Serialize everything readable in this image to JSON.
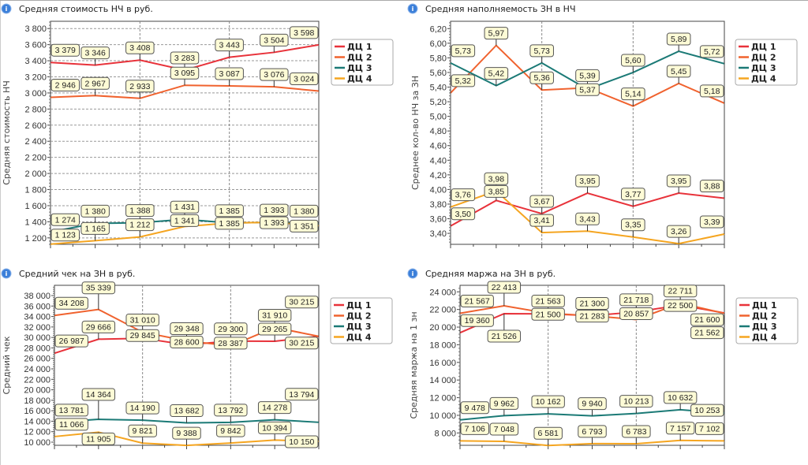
{
  "colors": {
    "ДЦ 1": "#e8323a",
    "ДЦ 2": "#f0622e",
    "ДЦ 3": "#1b7a76",
    "ДЦ 4": "#f5a520",
    "label_bg": "#fdfbd6",
    "label_border": "#555555"
  },
  "icons": {
    "title": "info-icon"
  },
  "chart_data": [
    {
      "type": "line",
      "title": "Средняя стоимость НЧ в руб.",
      "ylabel": "Средняя стоимость НЧ",
      "ylim": [
        1120,
        3890
      ],
      "grid": {
        "horizontal": true,
        "vertical_dashed_at_points": [
          3,
          5
        ]
      },
      "legend": "right",
      "ytick_values": [
        1200,
        1400,
        1600,
        1800,
        2000,
        2200,
        2400,
        2600,
        2800,
        3000,
        3200,
        3400,
        3600,
        3800
      ],
      "ytick_labels": [
        "1 200",
        "1 400",
        "1 600",
        "1 800",
        "2 000",
        "2 200",
        "2 400",
        "2 600",
        "2 800",
        "3 000",
        "3 200",
        "3 400",
        "3 600",
        "3 800"
      ],
      "series": [
        {
          "name": "ДЦ 1",
          "values": [
            3379,
            3346,
            3408,
            3283,
            3443,
            3504,
            3598
          ]
        },
        {
          "name": "ДЦ 2",
          "values": [
            2946,
            2967,
            2933,
            3095,
            3087,
            3076,
            3024
          ]
        },
        {
          "name": "ДЦ 3",
          "values": [
            1274,
            1380,
            1388,
            1431,
            1385,
            1393,
            1380
          ]
        },
        {
          "name": "ДЦ 4",
          "values": [
            1123,
            1165,
            1212,
            1341,
            1385,
            1393,
            1351
          ]
        }
      ]
    },
    {
      "type": "line",
      "title": "Средняя наполняемость ЗН в НЧ",
      "ylabel": "Среднее кол-во НЧ за ЗН",
      "ylim": [
        3.25,
        6.3
      ],
      "grid": {
        "horizontal": false,
        "vertical_dashed_at_points": [
          3,
          5
        ]
      },
      "legend": "right",
      "ytick_values": [
        3.4,
        3.6,
        3.8,
        4.0,
        4.2,
        4.4,
        4.6,
        4.8,
        5.0,
        5.2,
        5.4,
        5.6,
        5.8,
        6.0,
        6.2
      ],
      "ytick_labels": [
        "3,40",
        "3,60",
        "3,80",
        "4,00",
        "4,20",
        "4,40",
        "4,60",
        "4,80",
        "5,00",
        "5,20",
        "5,40",
        "5,60",
        "5,80",
        "6,00",
        "6,20"
      ],
      "series": [
        {
          "name": "ДЦ 1",
          "values": [
            3.5,
            3.85,
            3.67,
            3.95,
            3.77,
            3.95,
            3.88
          ]
        },
        {
          "name": "ДЦ 2",
          "values": [
            5.32,
            5.97,
            5.36,
            5.39,
            5.14,
            5.45,
            5.18
          ]
        },
        {
          "name": "ДЦ 3",
          "values": [
            5.73,
            5.42,
            5.73,
            5.37,
            5.6,
            5.89,
            5.72
          ]
        },
        {
          "name": "ДЦ 4",
          "values": [
            3.76,
            3.98,
            3.41,
            3.43,
            3.35,
            3.26,
            3.39
          ]
        }
      ]
    },
    {
      "type": "line",
      "title": "Средний чек на ЗН в руб.",
      "ylabel": "Средний чек",
      "ylim": [
        9400,
        39960
      ],
      "grid": {
        "horizontal": false,
        "vertical_dashed_at_points": [
          3,
          5
        ]
      },
      "legend": "right",
      "ytick_values": [
        10000,
        12000,
        14000,
        16000,
        18000,
        20000,
        22000,
        24000,
        26000,
        28000,
        30000,
        32000,
        34000,
        36000,
        38000
      ],
      "ytick_labels": [
        "10 000",
        "12 000",
        "14 000",
        "16 000",
        "18 000",
        "20 000",
        "22 000",
        "24 000",
        "26 000",
        "28 000",
        "30 000",
        "32 000",
        "34 000",
        "36 000",
        "38 000"
      ],
      "series": [
        {
          "name": "ДЦ 1",
          "values": [
            26987,
            29666,
            29845,
            28600,
            29300,
            29265,
            30215
          ]
        },
        {
          "name": "ДЦ 2",
          "values": [
            34208,
            35339,
            31010,
            29348,
            28387,
            31910,
            30215
          ]
        },
        {
          "name": "ДЦ 3",
          "values": [
            13781,
            14364,
            14190,
            13682,
            13792,
            14278,
            13794
          ]
        },
        {
          "name": "ДЦ 4",
          "values": [
            11066,
            11905,
            9821,
            9388,
            9842,
            10394,
            10150
          ]
        }
      ]
    },
    {
      "type": "line",
      "title": "Средняя маржа на ЗН в руб.",
      "ylabel": "Средняя маржа на 1 зн",
      "ylim": [
        6600,
        24740
      ],
      "grid": {
        "horizontal": false,
        "vertical_dashed_at_points": [
          3,
          5
        ]
      },
      "legend": "right",
      "ytick_values": [
        8000,
        10000,
        12000,
        14000,
        16000,
        18000,
        20000,
        22000,
        24000
      ],
      "ytick_labels": [
        "8 000",
        "10 000",
        "12 000",
        "14 000",
        "16 000",
        "18 000",
        "20 000",
        "22 000",
        "24 000"
      ],
      "series": [
        {
          "name": "ДЦ 1",
          "values": [
            19360,
            21526,
            21500,
            21300,
            21718,
            22500,
            21600
          ]
        },
        {
          "name": "ДЦ 2",
          "values": [
            21567,
            22413,
            21563,
            21283,
            20857,
            22711,
            21562
          ]
        },
        {
          "name": "ДЦ 3",
          "values": [
            9478,
            9962,
            10162,
            9940,
            10213,
            10632,
            10253
          ]
        },
        {
          "name": "ДЦ 4",
          "values": [
            7106,
            7048,
            6581,
            6793,
            6783,
            7157,
            7102
          ]
        }
      ]
    }
  ]
}
